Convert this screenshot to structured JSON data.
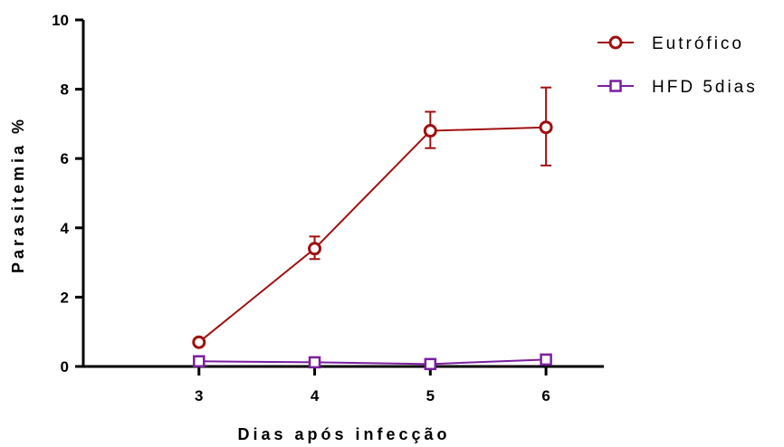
{
  "chart_data": {
    "type": "line",
    "title": "",
    "xlabel": "Dias após infecção",
    "ylabel": "Parasitemia %",
    "categories": [
      "3",
      "4",
      "5",
      "6"
    ],
    "x": [
      3,
      4,
      5,
      6
    ],
    "xlim": [
      2.0,
      6.5
    ],
    "ylim": [
      0,
      10
    ],
    "yticks": [
      0,
      2,
      4,
      6,
      8,
      10
    ],
    "ytick_labels": [
      "0",
      "2",
      "4",
      "6",
      "8",
      "10"
    ],
    "grid": false,
    "legend_position": "top-right",
    "series": [
      {
        "name": "Eutrófico",
        "color": "#a01010",
        "marker": "circle",
        "values": [
          0.7,
          3.4,
          6.8,
          6.9
        ],
        "error_upper": [
          0.7,
          3.75,
          7.35,
          8.05
        ],
        "error_lower": [
          0.7,
          3.1,
          6.3,
          5.8
        ]
      },
      {
        "name": "HFD 5dias",
        "color": "#7b1fa2",
        "marker": "square",
        "values": [
          0.15,
          0.12,
          0.07,
          0.2
        ],
        "error_upper": [
          0.15,
          0.12,
          0.07,
          0.2
        ],
        "error_lower": [
          0.15,
          0.12,
          0.07,
          0.2
        ]
      }
    ]
  }
}
